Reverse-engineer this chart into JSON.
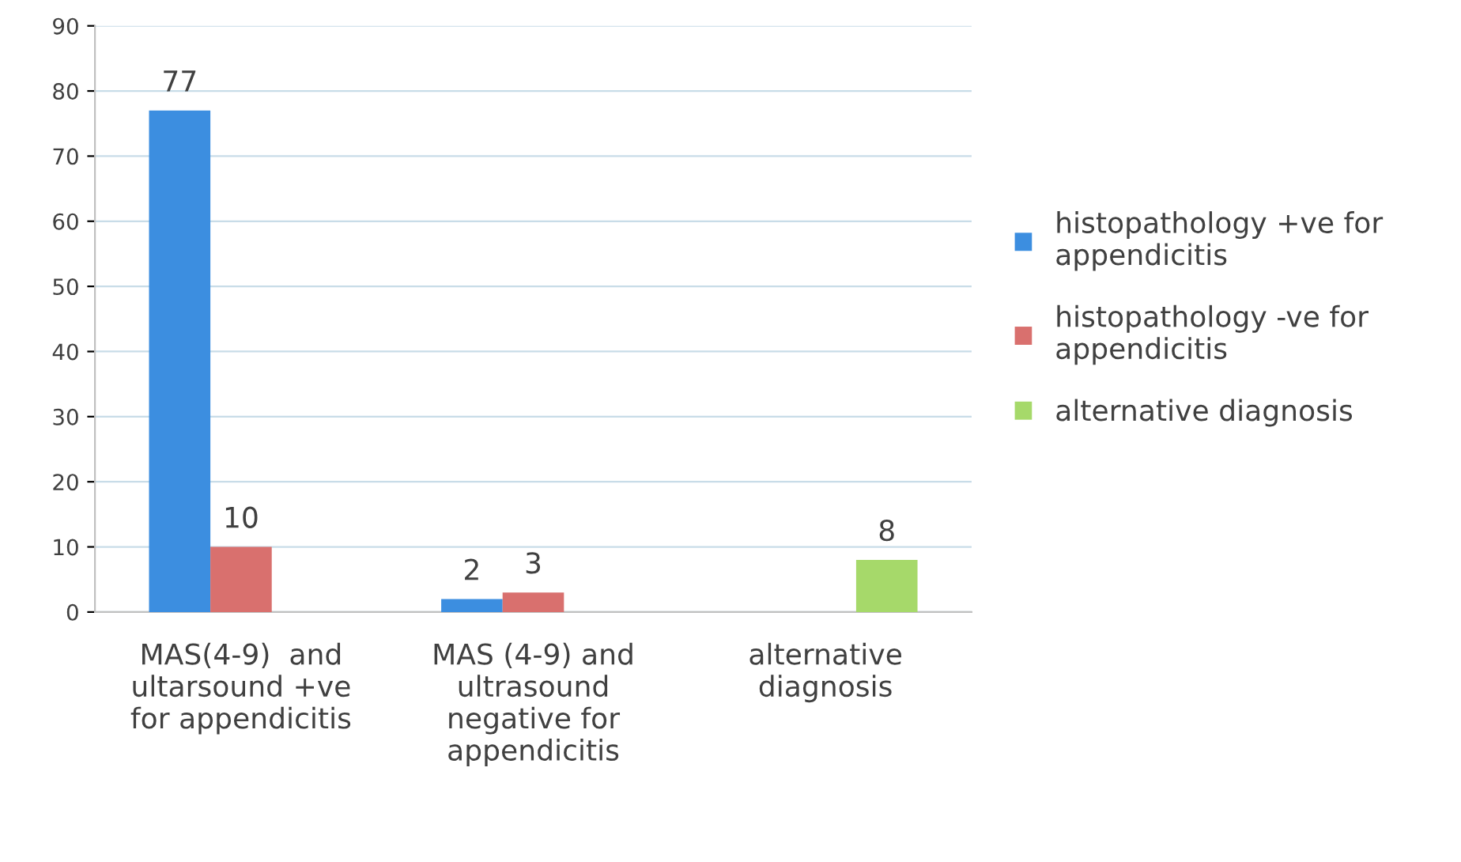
{
  "chart_data": {
    "type": "bar",
    "categories": [
      "MAS(4-9)  and\nultarsound +ve\nfor appendicitis",
      "MAS (4-9) and\nultrasound\nnegative for\nappendicitis",
      "alternative\ndiagnosis"
    ],
    "series": [
      {
        "name": "histopathology +ve for\nappendicitis",
        "color": "#3c8ee0",
        "values": [
          77,
          2,
          null
        ]
      },
      {
        "name": "histopathology -ve for\nappendicitis",
        "color": "#d9706e",
        "values": [
          10,
          3,
          null
        ]
      },
      {
        "name": "alternative diagnosis",
        "color": "#a6d96a",
        "values": [
          null,
          null,
          8
        ]
      }
    ],
    "ylim": [
      0,
      90
    ],
    "yticks": [
      0,
      10,
      20,
      30,
      40,
      50,
      60,
      70,
      80,
      90
    ],
    "grid": "y",
    "legend": "right",
    "data_labels": true
  }
}
